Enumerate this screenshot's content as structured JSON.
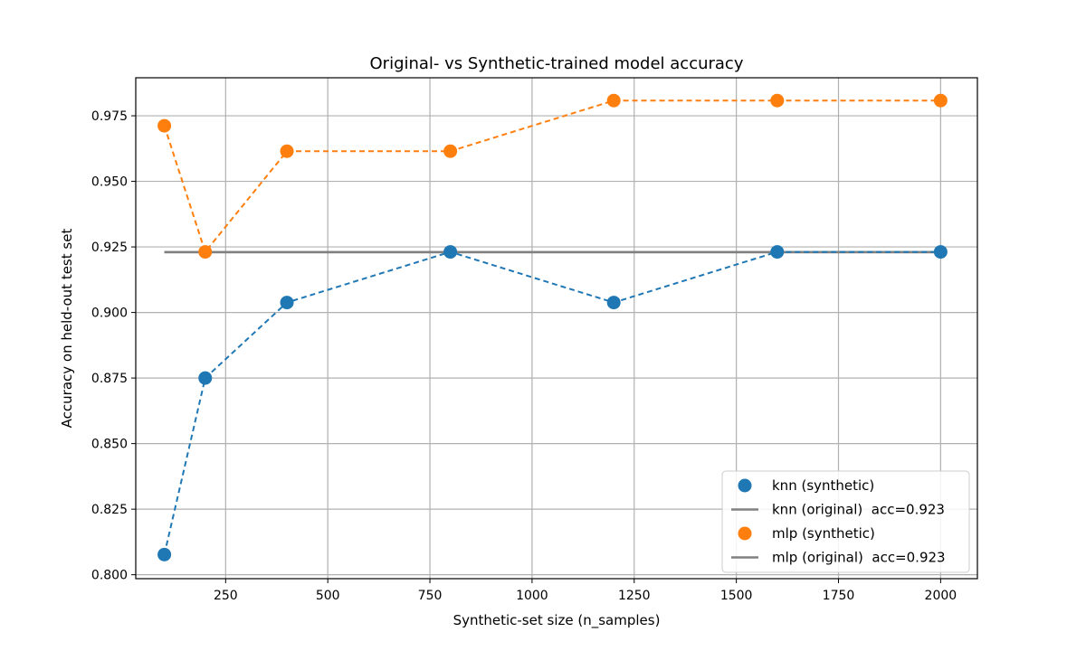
{
  "chart_data": {
    "type": "line",
    "title": "Original- vs Synthetic-trained model accuracy",
    "xlabel": "Synthetic-set size (n_samples)",
    "ylabel": "Accuracy on held-out test set",
    "xlim": [
      30,
      2090
    ],
    "ylim": [
      0.7985,
      0.9895
    ],
    "xticks": [
      250,
      500,
      750,
      1000,
      1250,
      1500,
      1750,
      2000
    ],
    "yticks": [
      0.8,
      0.825,
      0.85,
      0.875,
      0.9,
      0.925,
      0.95,
      0.975
    ],
    "ytick_format": 3,
    "grid": true,
    "legend_position": "lower-right",
    "x": [
      100,
      200,
      400,
      800,
      1200,
      1600,
      2000
    ],
    "series": [
      {
        "name": "knn (synthetic)",
        "kind": "synthetic",
        "color": "#1f77b4",
        "values": [
          0.8077,
          0.875,
          0.9038,
          0.9231,
          0.9038,
          0.9231,
          0.9231
        ]
      },
      {
        "name": "knn (original)  acc=0.923",
        "kind": "original",
        "color": "#808080",
        "value": 0.923,
        "x_range": [
          100,
          2000
        ]
      },
      {
        "name": "mlp (synthetic)",
        "kind": "synthetic",
        "color": "#ff7f0e",
        "values": [
          0.9712,
          0.9231,
          0.9615,
          0.9615,
          0.9808,
          0.9808,
          0.9808
        ]
      },
      {
        "name": "mlp (original)  acc=0.923",
        "kind": "original",
        "color": "#808080",
        "value": 0.923,
        "x_range": [
          100,
          2000
        ]
      }
    ]
  }
}
